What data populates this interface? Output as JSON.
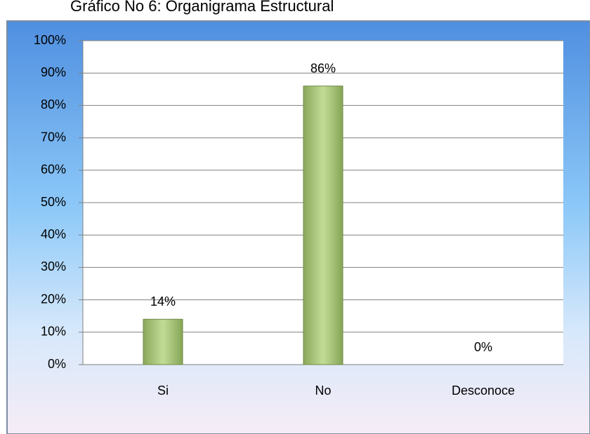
{
  "chart_data": {
    "type": "bar",
    "title": "Gráfico No 6: Organigrama Estructural",
    "categories": [
      "Si",
      "No",
      "Desconoce"
    ],
    "values": [
      14,
      86,
      0
    ],
    "value_labels": [
      "14%",
      "86%",
      "0%"
    ],
    "color": "#a9c47f",
    "ylim": [
      0,
      100
    ],
    "yticks": [
      {
        "value": 0,
        "label": "0%"
      },
      {
        "value": 10,
        "label": "10%"
      },
      {
        "value": 20,
        "label": "20%"
      },
      {
        "value": 30,
        "label": "30%"
      },
      {
        "value": 40,
        "label": "40%"
      },
      {
        "value": 50,
        "label": "50%"
      },
      {
        "value": 60,
        "label": "60%"
      },
      {
        "value": 70,
        "label": "70%"
      },
      {
        "value": 80,
        "label": "80%"
      },
      {
        "value": 90,
        "label": "90%"
      },
      {
        "value": 100,
        "label": "100%"
      }
    ],
    "grid": true
  }
}
